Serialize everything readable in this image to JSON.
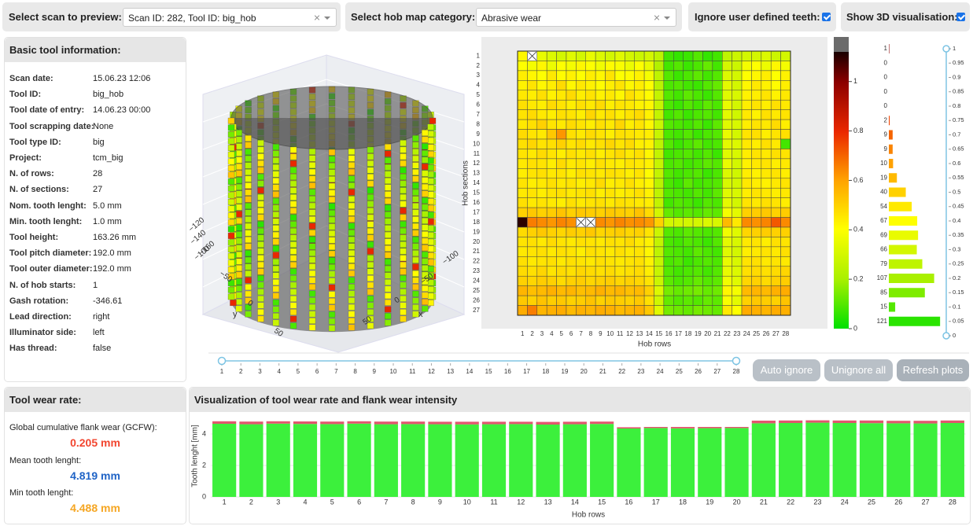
{
  "header": {
    "scan_label": "Select scan to preview:",
    "scan_value": "Scan ID: 282, Tool ID: big_hob",
    "category_label": "Select hob map category:",
    "category_value": "Abrasive wear",
    "ignore_label": "Ignore user defined teeth:",
    "ignore_checked": true,
    "show3d_label": "Show 3D visualisation:",
    "show3d_checked": true
  },
  "tool_info": {
    "title": "Basic tool information:",
    "rows": [
      [
        "Scan date:",
        "15.06.23 12:06"
      ],
      [
        "Tool ID:",
        "big_hob"
      ],
      [
        "Tool date of entry:",
        "14.06.23 00:00"
      ],
      [
        "Tool scrapping date:",
        "None"
      ],
      [
        "Tool type ID:",
        "big"
      ],
      [
        "Project:",
        "tcm_big"
      ],
      [
        "N. of rows:",
        "28"
      ],
      [
        "N. of sections:",
        "27"
      ],
      [
        "Nom. tooth lenght:",
        "5.0 mm"
      ],
      [
        "Min. tooth lenght:",
        "1.0 mm"
      ],
      [
        "Tool height:",
        "163.26 mm"
      ],
      [
        "Tool pitch diameter:",
        "192.0 mm"
      ],
      [
        "Tool outer diameter:",
        "192.0 mm"
      ],
      [
        "N. of hob starts:",
        "1"
      ],
      [
        "Gash rotation:",
        "-346.61"
      ],
      [
        "Lead direction:",
        "right"
      ],
      [
        "Illuminator side:",
        "left"
      ],
      [
        "Has thread:",
        "false"
      ]
    ]
  },
  "visualisation_3d": {
    "x_title": "x",
    "y_title": "y",
    "x_ticks": [
      "−100",
      "−50",
      "0",
      "50"
    ],
    "y_ticks": [
      "−50",
      "0",
      "50"
    ],
    "z_ticks": [
      "−100",
      "−120",
      "−140",
      "−160"
    ]
  },
  "heatmap": {
    "type": "heatmap",
    "x_title": "Hob rows",
    "y_title": "Hob sections",
    "x": [
      1,
      2,
      3,
      4,
      5,
      6,
      7,
      8,
      9,
      10,
      11,
      12,
      13,
      14,
      15,
      16,
      17,
      18,
      19,
      20,
      21,
      22,
      23,
      24,
      25,
      26,
      27,
      28
    ],
    "y": [
      1,
      2,
      3,
      4,
      5,
      6,
      7,
      8,
      9,
      10,
      11,
      12,
      13,
      14,
      15,
      16,
      17,
      18,
      19,
      20,
      21,
      22,
      23,
      24,
      25,
      26,
      27
    ],
    "values": [
      [
        0.42,
        null,
        0.35,
        0.32,
        0.3,
        0.33,
        0.3,
        0.35,
        0.32,
        0.3,
        0.33,
        0.3,
        0.28,
        0.3,
        0.25,
        0.08,
        0.06,
        0.07,
        0.1,
        0.06,
        0.08,
        0.25,
        0.28,
        0.3,
        0.3,
        0.32,
        0.28,
        0.3
      ],
      [
        0.4,
        0.38,
        0.42,
        0.36,
        0.4,
        0.38,
        0.42,
        0.4,
        0.37,
        0.41,
        0.39,
        0.36,
        0.4,
        0.35,
        0.22,
        0.08,
        0.1,
        0.07,
        0.09,
        0.12,
        0.08,
        0.3,
        0.28,
        0.38,
        0.4,
        0.36,
        0.42,
        0.38
      ],
      [
        0.44,
        0.42,
        0.4,
        0.45,
        0.41,
        0.43,
        0.4,
        0.44,
        0.42,
        0.46,
        0.4,
        0.41,
        0.43,
        0.38,
        0.25,
        0.1,
        0.07,
        0.09,
        0.11,
        0.08,
        0.1,
        0.32,
        0.3,
        0.4,
        0.42,
        0.44,
        0.4,
        0.43
      ],
      [
        0.43,
        0.46,
        0.42,
        0.44,
        0.48,
        0.42,
        0.45,
        0.43,
        0.41,
        0.44,
        0.46,
        0.42,
        0.44,
        0.4,
        0.24,
        0.09,
        0.1,
        0.08,
        0.07,
        0.1,
        0.12,
        0.34,
        0.3,
        0.42,
        0.45,
        0.43,
        0.41,
        0.44
      ],
      [
        0.45,
        0.44,
        0.47,
        0.43,
        0.45,
        0.48,
        0.44,
        0.46,
        0.43,
        0.45,
        0.42,
        0.47,
        0.44,
        0.41,
        0.26,
        0.1,
        0.08,
        0.11,
        0.09,
        0.07,
        0.1,
        0.33,
        0.31,
        0.43,
        0.44,
        0.46,
        0.43,
        0.45
      ],
      [
        0.47,
        0.45,
        0.44,
        0.48,
        0.46,
        0.44,
        0.47,
        0.45,
        0.48,
        0.44,
        0.46,
        0.45,
        0.43,
        0.42,
        0.27,
        0.09,
        0.07,
        0.1,
        0.08,
        0.11,
        0.09,
        0.35,
        0.3,
        0.44,
        0.46,
        0.44,
        0.47,
        0.45
      ],
      [
        0.46,
        0.48,
        0.45,
        0.44,
        0.47,
        0.46,
        0.44,
        0.49,
        0.45,
        0.47,
        0.44,
        0.46,
        0.48,
        0.43,
        0.26,
        0.08,
        0.1,
        0.07,
        0.09,
        0.1,
        0.08,
        0.34,
        0.29,
        0.45,
        0.43,
        0.47,
        0.45,
        0.46
      ],
      [
        0.45,
        0.47,
        0.5,
        0.46,
        0.45,
        0.48,
        0.46,
        0.44,
        0.47,
        0.45,
        0.49,
        0.44,
        0.46,
        0.42,
        0.28,
        0.1,
        0.09,
        0.08,
        0.1,
        0.07,
        0.11,
        0.33,
        0.31,
        0.44,
        0.46,
        0.45,
        0.48,
        0.44
      ],
      [
        0.48,
        0.46,
        0.45,
        0.52,
        0.62,
        0.47,
        0.45,
        0.48,
        0.46,
        0.44,
        0.47,
        0.46,
        0.45,
        0.44,
        0.27,
        0.09,
        0.08,
        0.1,
        0.07,
        0.09,
        0.1,
        0.35,
        0.3,
        0.46,
        0.47,
        0.44,
        0.46,
        0.47
      ],
      [
        0.47,
        0.49,
        0.46,
        0.47,
        0.5,
        0.46,
        0.48,
        0.45,
        0.47,
        0.49,
        0.46,
        0.48,
        0.44,
        0.43,
        0.25,
        0.1,
        0.07,
        0.09,
        0.11,
        0.08,
        0.09,
        0.34,
        0.32,
        0.45,
        0.44,
        0.47,
        0.45,
        0.08
      ],
      [
        0.46,
        0.45,
        0.48,
        0.46,
        0.44,
        0.47,
        0.45,
        0.47,
        0.44,
        0.46,
        0.48,
        0.45,
        0.47,
        0.42,
        0.26,
        0.08,
        0.09,
        0.1,
        0.08,
        0.1,
        0.07,
        0.33,
        0.31,
        0.44,
        0.46,
        0.45,
        0.47,
        0.46
      ],
      [
        0.45,
        0.47,
        0.46,
        0.44,
        0.48,
        0.45,
        0.46,
        0.44,
        0.47,
        0.45,
        0.44,
        0.46,
        0.45,
        0.43,
        0.27,
        0.09,
        0.1,
        0.08,
        0.09,
        0.11,
        0.1,
        0.35,
        0.3,
        0.43,
        0.45,
        0.46,
        0.44,
        0.45
      ],
      [
        0.44,
        0.46,
        0.47,
        0.45,
        0.46,
        0.44,
        0.47,
        0.46,
        0.45,
        0.47,
        0.46,
        0.44,
        0.46,
        0.41,
        0.26,
        0.1,
        0.08,
        0.09,
        0.1,
        0.07,
        0.09,
        0.32,
        0.29,
        0.44,
        0.43,
        0.45,
        0.46,
        0.44
      ],
      [
        0.46,
        0.44,
        0.45,
        0.47,
        0.45,
        0.46,
        0.44,
        0.45,
        0.48,
        0.44,
        0.45,
        0.47,
        0.44,
        0.42,
        0.24,
        0.09,
        0.07,
        0.11,
        0.08,
        0.09,
        0.1,
        0.31,
        0.3,
        0.45,
        0.44,
        0.43,
        0.45,
        0.46
      ],
      [
        0.45,
        0.46,
        0.44,
        0.46,
        0.47,
        0.45,
        0.46,
        0.47,
        0.44,
        0.46,
        0.44,
        0.45,
        0.47,
        0.43,
        0.25,
        0.1,
        0.09,
        0.08,
        0.1,
        0.08,
        0.11,
        0.33,
        0.31,
        0.44,
        0.46,
        0.45,
        0.44,
        0.45
      ],
      [
        0.47,
        0.45,
        0.46,
        0.45,
        0.44,
        0.47,
        0.45,
        0.46,
        0.47,
        0.45,
        0.47,
        0.46,
        0.45,
        0.44,
        0.26,
        0.08,
        0.1,
        0.09,
        0.07,
        0.1,
        0.09,
        0.34,
        0.3,
        0.46,
        0.45,
        0.47,
        0.46,
        0.44
      ],
      [
        0.5,
        0.52,
        0.5,
        0.51,
        0.53,
        0.5,
        0.52,
        0.51,
        0.5,
        0.52,
        0.51,
        0.5,
        0.53,
        0.48,
        0.3,
        0.12,
        0.1,
        0.11,
        0.1,
        0.12,
        0.11,
        0.38,
        0.34,
        0.5,
        0.51,
        0.52,
        0.5,
        0.51
      ],
      [
        1.1,
        0.66,
        0.64,
        0.62,
        0.65,
        0.63,
        null,
        null,
        0.64,
        0.62,
        0.65,
        0.63,
        0.64,
        0.62,
        0.5,
        0.3,
        0.3,
        0.3,
        0.3,
        0.32,
        0.31,
        0.55,
        0.45,
        0.64,
        0.63,
        0.65,
        0.72,
        0.64
      ],
      [
        0.48,
        0.5,
        0.52,
        0.5,
        0.49,
        0.51,
        0.5,
        0.52,
        0.49,
        0.5,
        0.51,
        0.49,
        0.5,
        0.46,
        0.28,
        0.1,
        0.09,
        0.11,
        0.1,
        0.09,
        0.1,
        0.37,
        0.33,
        0.49,
        0.5,
        0.51,
        0.5,
        0.5
      ],
      [
        0.46,
        0.47,
        0.45,
        0.48,
        0.46,
        0.45,
        0.47,
        0.46,
        0.45,
        0.47,
        0.46,
        0.48,
        0.45,
        0.43,
        0.26,
        0.09,
        0.08,
        0.1,
        0.09,
        0.07,
        0.1,
        0.34,
        0.31,
        0.45,
        0.46,
        0.44,
        0.47,
        0.46
      ],
      [
        0.45,
        0.46,
        0.47,
        0.45,
        0.47,
        0.46,
        0.44,
        0.47,
        0.46,
        0.45,
        0.47,
        0.45,
        0.46,
        0.42,
        0.25,
        0.1,
        0.09,
        0.08,
        0.11,
        0.09,
        0.08,
        0.33,
        0.3,
        0.44,
        0.45,
        0.46,
        0.45,
        0.47
      ],
      [
        0.47,
        0.45,
        0.46,
        0.47,
        0.45,
        0.47,
        0.46,
        0.45,
        0.47,
        0.46,
        0.45,
        0.46,
        0.47,
        0.43,
        0.27,
        0.09,
        0.1,
        0.07,
        0.09,
        0.1,
        0.09,
        0.35,
        0.31,
        0.46,
        0.47,
        0.45,
        0.46,
        0.45
      ],
      [
        0.48,
        0.47,
        0.49,
        0.46,
        0.48,
        0.47,
        0.49,
        0.48,
        0.47,
        0.48,
        0.46,
        0.47,
        0.48,
        0.44,
        0.27,
        0.1,
        0.08,
        0.09,
        0.1,
        0.08,
        0.1,
        0.35,
        0.32,
        0.47,
        0.48,
        0.47,
        0.48,
        0.49
      ],
      [
        0.5,
        0.49,
        0.51,
        0.5,
        0.48,
        0.5,
        0.51,
        0.49,
        0.5,
        0.51,
        0.49,
        0.5,
        0.49,
        0.46,
        0.28,
        0.11,
        0.09,
        0.1,
        0.12,
        0.1,
        0.11,
        0.37,
        0.33,
        0.49,
        0.5,
        0.48,
        0.5,
        0.51
      ],
      [
        0.56,
        0.54,
        0.55,
        0.57,
        0.55,
        0.56,
        0.54,
        0.55,
        0.57,
        0.55,
        0.56,
        0.54,
        0.55,
        0.5,
        0.32,
        0.14,
        0.12,
        0.13,
        0.14,
        0.12,
        0.13,
        0.42,
        0.38,
        0.55,
        0.56,
        0.55,
        0.57,
        0.58
      ],
      [
        0.52,
        0.5,
        0.53,
        0.51,
        0.52,
        0.5,
        0.51,
        0.53,
        0.5,
        0.52,
        0.51,
        0.5,
        0.52,
        0.47,
        0.29,
        0.12,
        0.1,
        0.11,
        0.1,
        0.12,
        0.11,
        0.39,
        0.34,
        0.5,
        0.52,
        0.51,
        0.5,
        0.53
      ],
      [
        0.58,
        0.66,
        0.56,
        0.57,
        0.58,
        0.55,
        0.57,
        0.56,
        0.58,
        0.57,
        0.55,
        0.56,
        0.57,
        0.52,
        0.33,
        0.14,
        0.13,
        0.12,
        0.14,
        0.13,
        0.12,
        0.45,
        0.4,
        0.58,
        0.57,
        0.56,
        0.58,
        0.57
      ]
    ],
    "colorbar": {
      "lim": [
        0,
        1.12
      ],
      "ticks": [
        0,
        0.2,
        0.4,
        0.6,
        0.8,
        1
      ]
    }
  },
  "histogram": {
    "type": "bar",
    "orientation": "horizontal",
    "y": [
      0.05,
      0.1,
      0.15,
      0.2,
      0.25,
      0.3,
      0.35,
      0.4,
      0.45,
      0.5,
      0.55,
      0.6,
      0.65,
      0.7,
      0.75,
      0.8,
      0.85,
      0.9,
      0.95,
      1
    ],
    "values": [
      121,
      15,
      85,
      107,
      79,
      66,
      69,
      67,
      54,
      40,
      19,
      10,
      9,
      9,
      2,
      0,
      0,
      0,
      0,
      1
    ],
    "xlim": [
      0,
      130
    ],
    "ylim": [
      0,
      1
    ],
    "yticks": [
      0,
      0.05,
      0.1,
      0.15,
      0.2,
      0.25,
      0.3,
      0.35,
      0.4,
      0.45,
      0.5,
      0.55,
      0.6,
      0.65,
      0.7,
      0.75,
      0.8,
      0.85,
      0.9,
      0.95,
      1
    ]
  },
  "slider": {
    "ticks": [
      1,
      2,
      3,
      4,
      5,
      6,
      7,
      8,
      9,
      10,
      11,
      12,
      13,
      14,
      15,
      16,
      17,
      18,
      19,
      20,
      21,
      22,
      23,
      24,
      25,
      26,
      27,
      28
    ]
  },
  "buttons": [
    "Auto ignore",
    "Unignore all",
    "Refresh plots"
  ],
  "wear": {
    "title": "Tool wear rate:",
    "items": [
      {
        "label": "Global cumulative flank wear (GCFW):",
        "value": "0.205 mm",
        "color": "#f2452f"
      },
      {
        "label": "Mean tooth lenght:",
        "value": "4.819 mm",
        "color": "#1f63c6"
      },
      {
        "label": "Min tooth lenght:",
        "value": "4.488 mm",
        "color": "#f5a623"
      }
    ]
  },
  "wear_chart": {
    "type": "bar",
    "stacked": true,
    "title": "Visualization of tool wear rate and flank wear intensity",
    "x_title": "Hob rows",
    "y_title": "Tooth lenght [mm]",
    "categories": [
      1,
      2,
      3,
      4,
      5,
      6,
      7,
      8,
      9,
      10,
      11,
      12,
      13,
      14,
      15,
      16,
      17,
      18,
      19,
      20,
      21,
      22,
      23,
      24,
      25,
      26,
      27,
      28
    ],
    "series": [
      {
        "color": "#3cf03c",
        "values": [
          4.65,
          4.62,
          4.66,
          4.64,
          4.63,
          4.66,
          4.62,
          4.63,
          4.62,
          4.61,
          4.62,
          4.63,
          4.6,
          4.62,
          4.64,
          4.35,
          4.38,
          4.36,
          4.37,
          4.38,
          4.68,
          4.7,
          4.72,
          4.7,
          4.69,
          4.68,
          4.67,
          4.7
        ]
      },
      {
        "color": "#e2566e",
        "values": [
          0.16,
          0.17,
          0.15,
          0.16,
          0.16,
          0.15,
          0.17,
          0.16,
          0.16,
          0.17,
          0.16,
          0.15,
          0.17,
          0.16,
          0.15,
          0.08,
          0.07,
          0.09,
          0.08,
          0.07,
          0.17,
          0.16,
          0.15,
          0.16,
          0.17,
          0.16,
          0.17,
          0.16
        ]
      }
    ],
    "ylim": [
      0,
      5.2
    ],
    "yticks": [
      0,
      2,
      4
    ],
    "grid": true
  }
}
